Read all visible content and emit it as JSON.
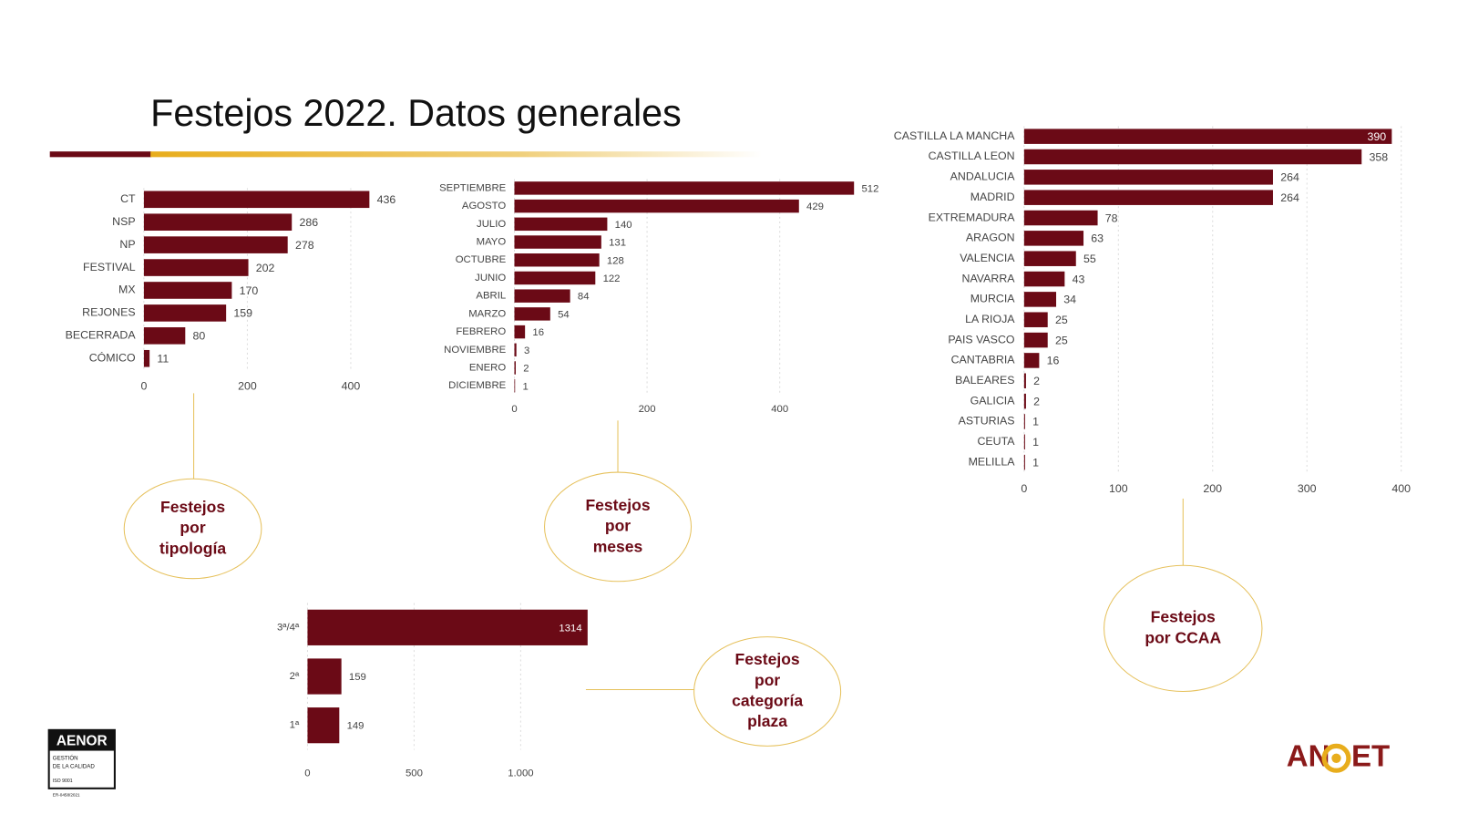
{
  "title": "Festejos 2022. Datos generales",
  "chart_data": [
    {
      "type": "hbar",
      "color": "#6b0a16",
      "grid": true,
      "categories": [
        "CT",
        "NSP",
        "NP",
        "FESTIVAL",
        "MX",
        "REJONES",
        "BECERRADA",
        "CÓMICO"
      ],
      "values": [
        436,
        286,
        278,
        202,
        170,
        159,
        80,
        11
      ],
      "xlim": [
        0,
        500
      ],
      "xticks": [
        0,
        200,
        400
      ]
    },
    {
      "type": "hbar",
      "color": "#6b0a16",
      "grid": true,
      "categories": [
        "SEPTIEMBRE",
        "AGOSTO",
        "JULIO",
        "MAYO",
        "OCTUBRE",
        "JUNIO",
        "ABRIL",
        "MARZO",
        "FEBRERO",
        "NOVIEMBRE",
        "ENERO",
        "DICIEMBRE"
      ],
      "values": [
        512,
        429,
        140,
        131,
        128,
        122,
        84,
        54,
        16,
        3,
        2,
        1
      ],
      "xlim": [
        0,
        560
      ],
      "xticks": [
        0,
        200,
        400
      ]
    },
    {
      "type": "hbar",
      "color": "#6b0a16",
      "grid": true,
      "categories": [
        "CASTILLA LA MANCHA",
        "CASTILLA LEON",
        "ANDALUCIA",
        "MADRID",
        "EXTREMADURA",
        "ARAGON",
        "VALENCIA",
        "NAVARRA",
        "MURCIA",
        "LA RIOJA",
        "PAIS VASCO",
        "CANTABRIA",
        "BALEARES",
        "GALICIA",
        "ASTURIAS",
        "CEUTA",
        "MELILLA"
      ],
      "values": [
        390,
        358,
        264,
        264,
        78,
        63,
        55,
        43,
        34,
        25,
        25,
        16,
        2,
        2,
        1,
        1,
        1
      ],
      "xlim": [
        0,
        400
      ],
      "xticks": [
        0,
        100,
        200,
        300,
        400
      ]
    },
    {
      "type": "hbar",
      "color": "#6b0a16",
      "grid": true,
      "categories": [
        "3ª/4ª",
        "2ª",
        "1ª"
      ],
      "values": [
        1314,
        159,
        149
      ],
      "xlim": [
        0,
        1350
      ],
      "xticks": [
        0,
        500,
        {
          "value": 1000,
          "label": "1.000"
        }
      ]
    }
  ],
  "callouts": [
    {
      "lines": [
        "Festejos",
        "por",
        "tipología"
      ]
    },
    {
      "lines": [
        "Festejos",
        "por",
        "meses"
      ]
    },
    {
      "lines": [
        "Festejos",
        "por CCAA"
      ]
    },
    {
      "lines": [
        "Festejos",
        "por",
        "categoría",
        "plaza"
      ]
    }
  ],
  "logos": {
    "aenor": {
      "name": "AENOR",
      "lines": [
        "GESTIÓN",
        "DE LA CALIDAD",
        "ISO 9001"
      ],
      "code": "ER-0458/2021"
    },
    "anoet": [
      "AN",
      "ET"
    ]
  }
}
